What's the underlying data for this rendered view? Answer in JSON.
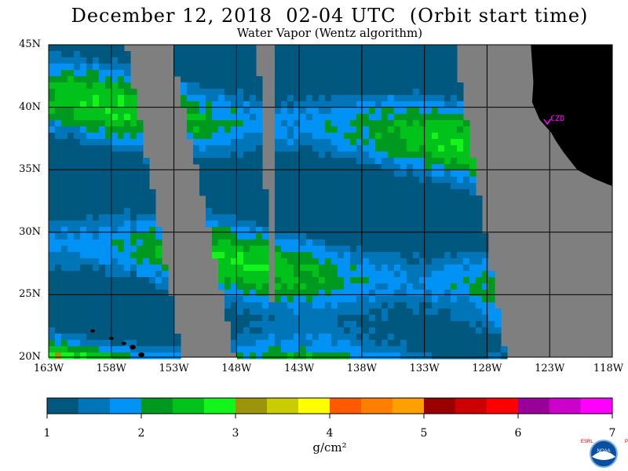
{
  "title": "December 12, 2018  02-04 UTC  (Orbit start time)",
  "subtitle": "Water Vapor (Wentz algorithm)",
  "map": {
    "region": {
      "lon_min": -163,
      "lon_max": -118,
      "lat_min": 20,
      "lat_max": 45
    },
    "lat_labels": [
      "45N",
      "40N",
      "35N",
      "30N",
      "25N",
      "20N"
    ],
    "lon_labels": [
      "163W",
      "158W",
      "153W",
      "148W",
      "143W",
      "138W",
      "133W",
      "128W",
      "123W",
      "118W"
    ],
    "site_label": "CZD",
    "colors": {
      "no_data": "#7f7f7f",
      "land": "#000000",
      "grid": "#000000",
      "site": "#ff00ff"
    }
  },
  "colorbar": {
    "units": "g/cm²",
    "tick_labels": [
      "1",
      "2",
      "3",
      "4",
      "5",
      "6",
      "7"
    ],
    "colors": [
      "#00587e",
      "#0075b8",
      "#0093f5",
      "#00991f",
      "#00c21a",
      "#11f51b",
      "#9c940a",
      "#c9cc00",
      "#ffff00",
      "#ff5a00",
      "#ff7f00",
      "#ff9f00",
      "#990000",
      "#cc0000",
      "#ff0000",
      "#990099",
      "#cc00cc",
      "#ff00ff"
    ]
  },
  "logo": {
    "name": "noaa-esrl-psd-logo",
    "text": "NOAA",
    "left_letters": "ESRL",
    "right_letters": "PSD"
  }
}
